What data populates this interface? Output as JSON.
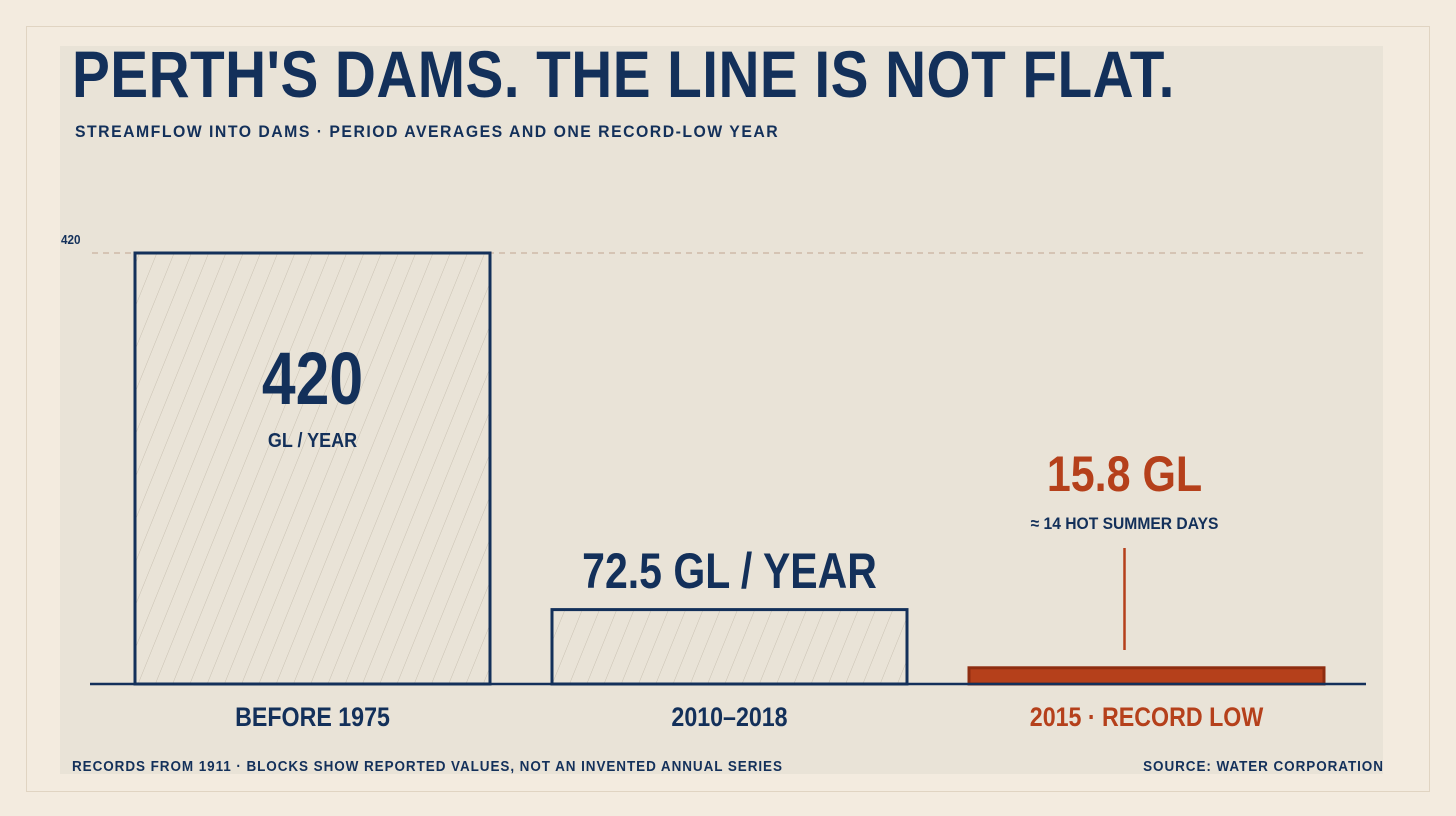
{
  "title": "PERTH'S DAMS. THE LINE IS NOT FLAT.",
  "subtitle": "STREAMFLOW INTO DAMS · PERIOD AVERAGES AND ONE RECORD-LOW YEAR",
  "footnote": "RECORDS FROM 1911 · BLOCKS SHOW REPORTED VALUES, NOT AN INVENTED ANNUAL SERIES",
  "source": "SOURCE: WATER CORPORATION",
  "colors": {
    "navy": "#13305a",
    "rust": "#b5401b",
    "panel": "#e9e3d7",
    "page": "#f3ebdf"
  },
  "chart_data": {
    "type": "bar",
    "categories": [
      "BEFORE 1975",
      "2010–2018",
      "2015 · RECORD LOW"
    ],
    "values": [
      420,
      72.5,
      15.8
    ],
    "unit": "GL",
    "ylim": [
      0,
      420
    ],
    "reference_line": {
      "value": 420,
      "label": "420",
      "style": "dashed"
    },
    "bar_labels": [
      {
        "value_text": "420",
        "unit_text": "GL / YEAR"
      },
      {
        "value_text": "72.5 GL / YEAR"
      },
      {
        "value_text": "15.8 GL",
        "note": "≈ 14 HOT SUMMER DAYS"
      }
    ],
    "highlight_index": 2,
    "grid": false,
    "legend": "none"
  }
}
